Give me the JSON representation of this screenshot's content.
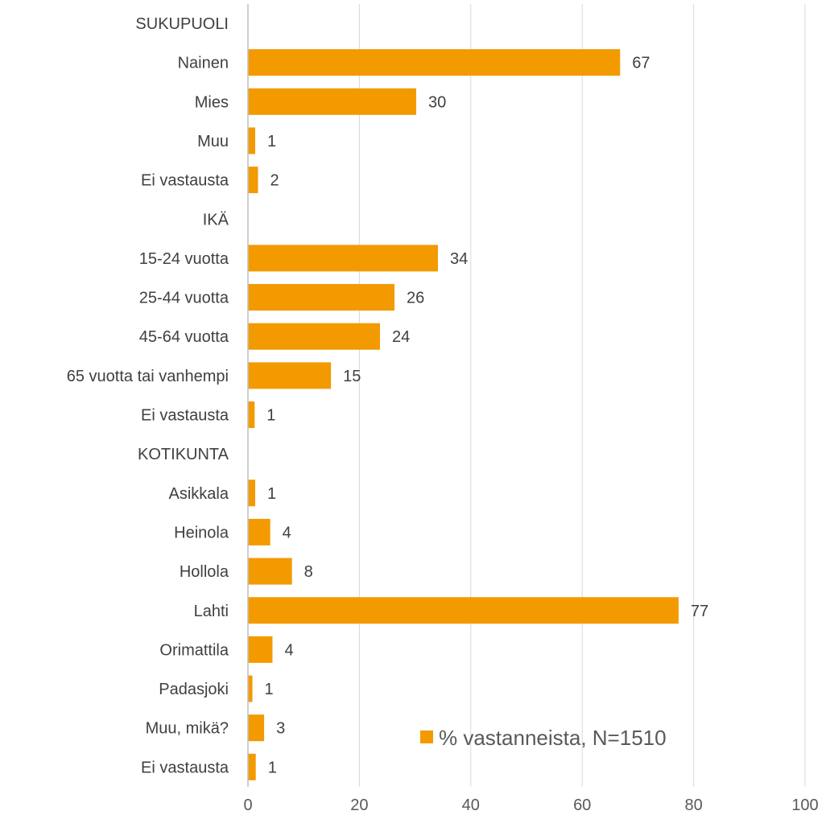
{
  "chart_data": {
    "type": "bar",
    "orientation": "horizontal",
    "categories": [
      "SUKUPUOLI",
      "Nainen",
      "Mies",
      "Muu",
      "Ei vastausta",
      "IKÄ",
      "15-24 vuotta",
      "25-44 vuotta",
      "45-64 vuotta",
      "65 vuotta tai vanhempi",
      "Ei vastausta",
      "KOTIKUNTA",
      "Asikkala",
      "Heinola",
      "Hollola",
      "Lahti",
      "Orimattila",
      "Padasjoki",
      "Muu, mikä?",
      "Ei vastausta"
    ],
    "series": [
      {
        "name": "% vastanneista, N=1510",
        "color": "#f39a00",
        "values": [
          null,
          67,
          30,
          1,
          2,
          null,
          34,
          26,
          24,
          15,
          1,
          null,
          1,
          4,
          8,
          77,
          4,
          1,
          3,
          1
        ],
        "display_values": [
          null,
          66.8,
          30.2,
          1.3,
          1.8,
          null,
          34.1,
          26.3,
          23.7,
          14.9,
          1.2,
          null,
          1.3,
          4.0,
          7.9,
          77.3,
          4.4,
          0.8,
          2.9,
          1.4
        ]
      }
    ],
    "xlim": [
      0,
      100
    ],
    "xticks": [
      "0",
      "20",
      "40",
      "60",
      "80",
      "100"
    ],
    "grid": true,
    "legend": "bottom-right"
  }
}
